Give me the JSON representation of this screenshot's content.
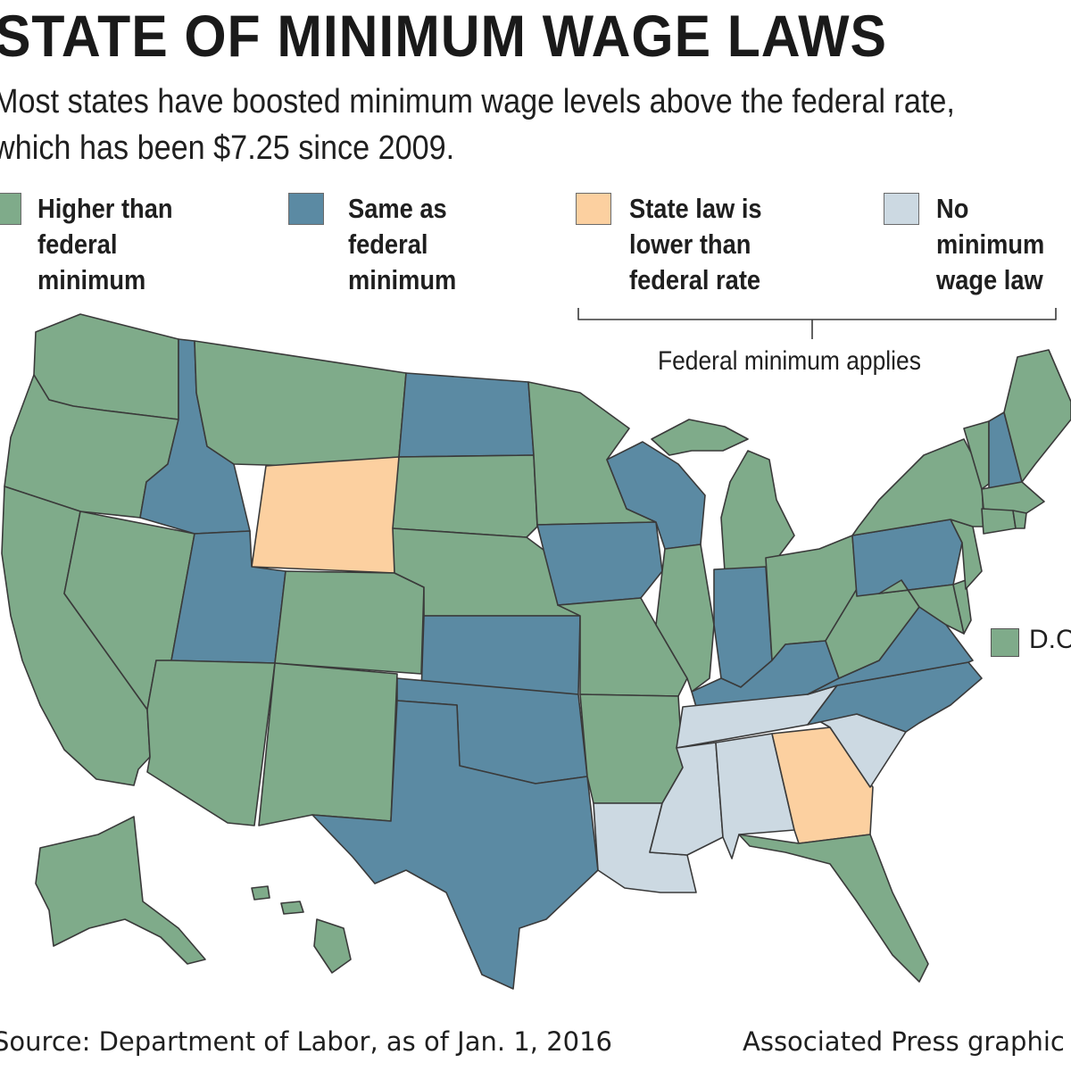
{
  "header": {
    "title": "STATE OF MINIMUM WAGE LAWS",
    "subtitle": "Most states have boosted minimum wage levels above the federal rate, which has been $7.25 since 2009."
  },
  "legend": {
    "items": [
      {
        "label": "Higher than federal minimum",
        "lines": [
          "Higher than",
          "federal",
          "minimum"
        ],
        "color": "#7fab8a"
      },
      {
        "label": "Same as federal minimum",
        "lines": [
          "Same as",
          "federal",
          "minimum"
        ],
        "color": "#5b8aa3"
      },
      {
        "label": "State law is lower than federal rate",
        "lines": [
          "State law is",
          "lower than",
          "federal rate"
        ],
        "color": "#fcd0a0"
      },
      {
        "label": "No minimum wage law",
        "lines": [
          "No",
          "minimum",
          "wage law"
        ],
        "color": "#ccd9e2"
      }
    ],
    "bracket_label": "Federal minimum applies"
  },
  "dc": {
    "label": "D.C.",
    "color": "#7fab8a"
  },
  "footer": {
    "source": "Source: Department of Labor, as of Jan. 1, 2016",
    "credit": "Associated Press graphic"
  },
  "categories": {
    "higher": [
      "WA",
      "OR",
      "CA",
      "NV",
      "AZ",
      "MT",
      "SD",
      "NE",
      "CO",
      "NM",
      "MN",
      "MO",
      "AR",
      "IL",
      "MI",
      "OH",
      "WV",
      "MD",
      "DE",
      "NJ",
      "NY",
      "CT",
      "RI",
      "MA",
      "VT",
      "ME",
      "FL",
      "AK",
      "HI",
      "DC"
    ],
    "same": [
      "ID",
      "UT",
      "ND",
      "KS",
      "OK",
      "TX",
      "IA",
      "WI",
      "IN",
      "KY",
      "VA",
      "NC",
      "PA",
      "NH"
    ],
    "lower": [
      "WY",
      "GA"
    ],
    "none": [
      "TN",
      "MS",
      "AL",
      "LA",
      "SC"
    ]
  }
}
